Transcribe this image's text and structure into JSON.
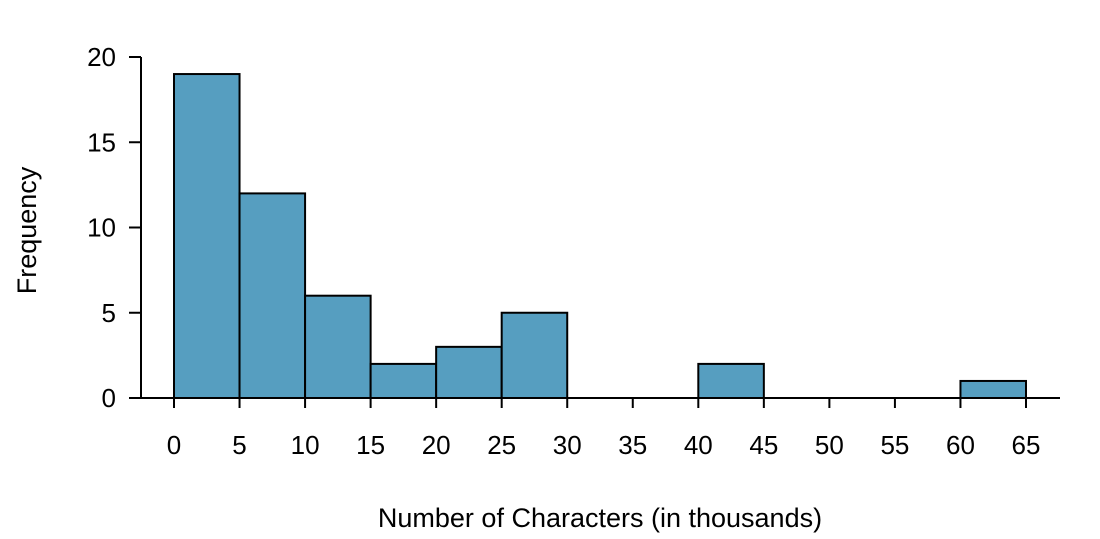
{
  "chart_data": {
    "type": "bar",
    "title": "",
    "xlabel": "Number of Characters (in thousands)",
    "ylabel": "Frequency",
    "bins": [
      {
        "x0": 0,
        "x1": 5,
        "count": 19
      },
      {
        "x0": 5,
        "x1": 10,
        "count": 12
      },
      {
        "x0": 10,
        "x1": 15,
        "count": 6
      },
      {
        "x0": 15,
        "x1": 20,
        "count": 2
      },
      {
        "x0": 20,
        "x1": 25,
        "count": 3
      },
      {
        "x0": 25,
        "x1": 30,
        "count": 5
      },
      {
        "x0": 30,
        "x1": 35,
        "count": 0
      },
      {
        "x0": 35,
        "x1": 40,
        "count": 0
      },
      {
        "x0": 40,
        "x1": 45,
        "count": 2
      },
      {
        "x0": 45,
        "x1": 50,
        "count": 0
      },
      {
        "x0": 50,
        "x1": 55,
        "count": 0
      },
      {
        "x0": 55,
        "x1": 60,
        "count": 0
      },
      {
        "x0": 60,
        "x1": 65,
        "count": 1
      }
    ],
    "xticks": [
      "0",
      "5",
      "10",
      "15",
      "20",
      "25",
      "30",
      "35",
      "40",
      "45",
      "50",
      "55",
      "60",
      "65"
    ],
    "yticks": [
      "0",
      "5",
      "10",
      "15",
      "20"
    ],
    "xlim": [
      0,
      65
    ],
    "ylim": [
      0,
      20
    ],
    "grid": false,
    "bar_color": "#569EC0"
  }
}
